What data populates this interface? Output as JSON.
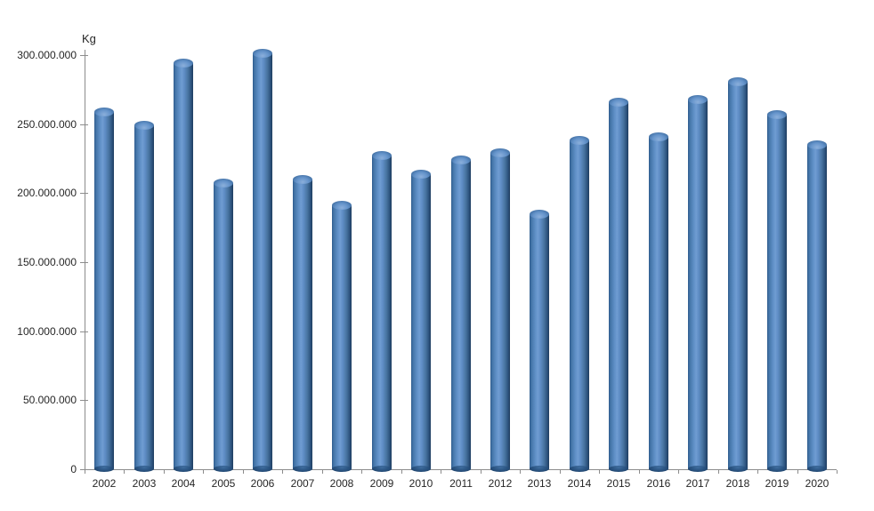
{
  "chart": {
    "y_unit": "Kg",
    "y_tick_labels": [
      "0",
      "50.000.000",
      "100.000.000",
      "150.000.000",
      "200.000.000",
      "250.000.000",
      "300.000.000"
    ],
    "colors": {
      "bar_main": "#4f81bd",
      "bar_light": "#6f9cd2",
      "bar_dark": "#1f3d5f",
      "axis": "#8c8c8c",
      "text": "#262626",
      "background": "#ffffff"
    }
  },
  "chart_data": {
    "type": "bar",
    "title": "",
    "xlabel": "",
    "ylabel": "Kg",
    "categories": [
      "2002",
      "2003",
      "2004",
      "2005",
      "2006",
      "2007",
      "2008",
      "2009",
      "2010",
      "2011",
      "2012",
      "2013",
      "2014",
      "2015",
      "2016",
      "2017",
      "2018",
      "2019",
      "2020"
    ],
    "values": [
      259000000,
      249000000,
      294000000,
      207000000,
      301000000,
      210000000,
      191000000,
      227000000,
      214000000,
      224000000,
      229000000,
      185000000,
      238000000,
      266000000,
      241000000,
      268000000,
      281000000,
      257000000,
      235000000
    ],
    "ylim": [
      0,
      300000000
    ],
    "yticks": [
      0,
      50000000,
      100000000,
      150000000,
      200000000,
      250000000,
      300000000
    ],
    "grid": false,
    "legend": false,
    "bar_style": "cylinder-3d"
  }
}
